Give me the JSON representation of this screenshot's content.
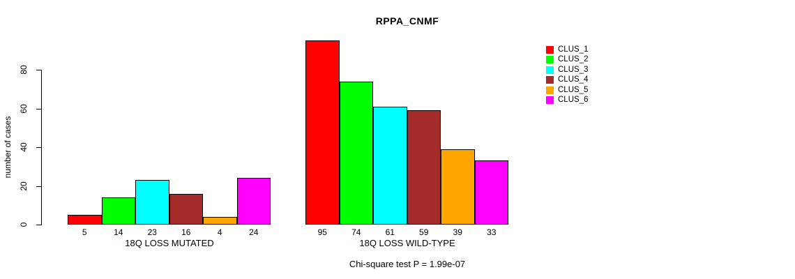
{
  "chart_data": {
    "type": "bar",
    "title": "RPPA_CNMF",
    "xlabel": "",
    "ylabel": "number of cases",
    "ylim": [
      0,
      80
    ],
    "yticks": [
      0,
      20,
      40,
      60,
      80
    ],
    "grid": false,
    "legend_position": "right",
    "legend_entries": [
      {
        "label": "CLUS_1",
        "color": "#FF0000"
      },
      {
        "label": "CLUS_2",
        "color": "#00FF00"
      },
      {
        "label": "CLUS_3",
        "color": "#00FFFF"
      },
      {
        "label": "CLUS_4",
        "color": "#A52A2A"
      },
      {
        "label": "CLUS_5",
        "color": "#FFA500"
      },
      {
        "label": "CLUS_6",
        "color": "#FF00FF"
      }
    ],
    "groups": [
      {
        "label": "18Q LOSS MUTATED",
        "values": [
          5,
          14,
          23,
          16,
          4,
          24
        ]
      },
      {
        "label": "18Q LOSS WILD-TYPE",
        "values": [
          95,
          74,
          61,
          59,
          39,
          33
        ]
      }
    ],
    "annotation": "Chi-square test P = 1.99e-07",
    "bar_border_color": "#000000",
    "axis_color": "#000000"
  }
}
